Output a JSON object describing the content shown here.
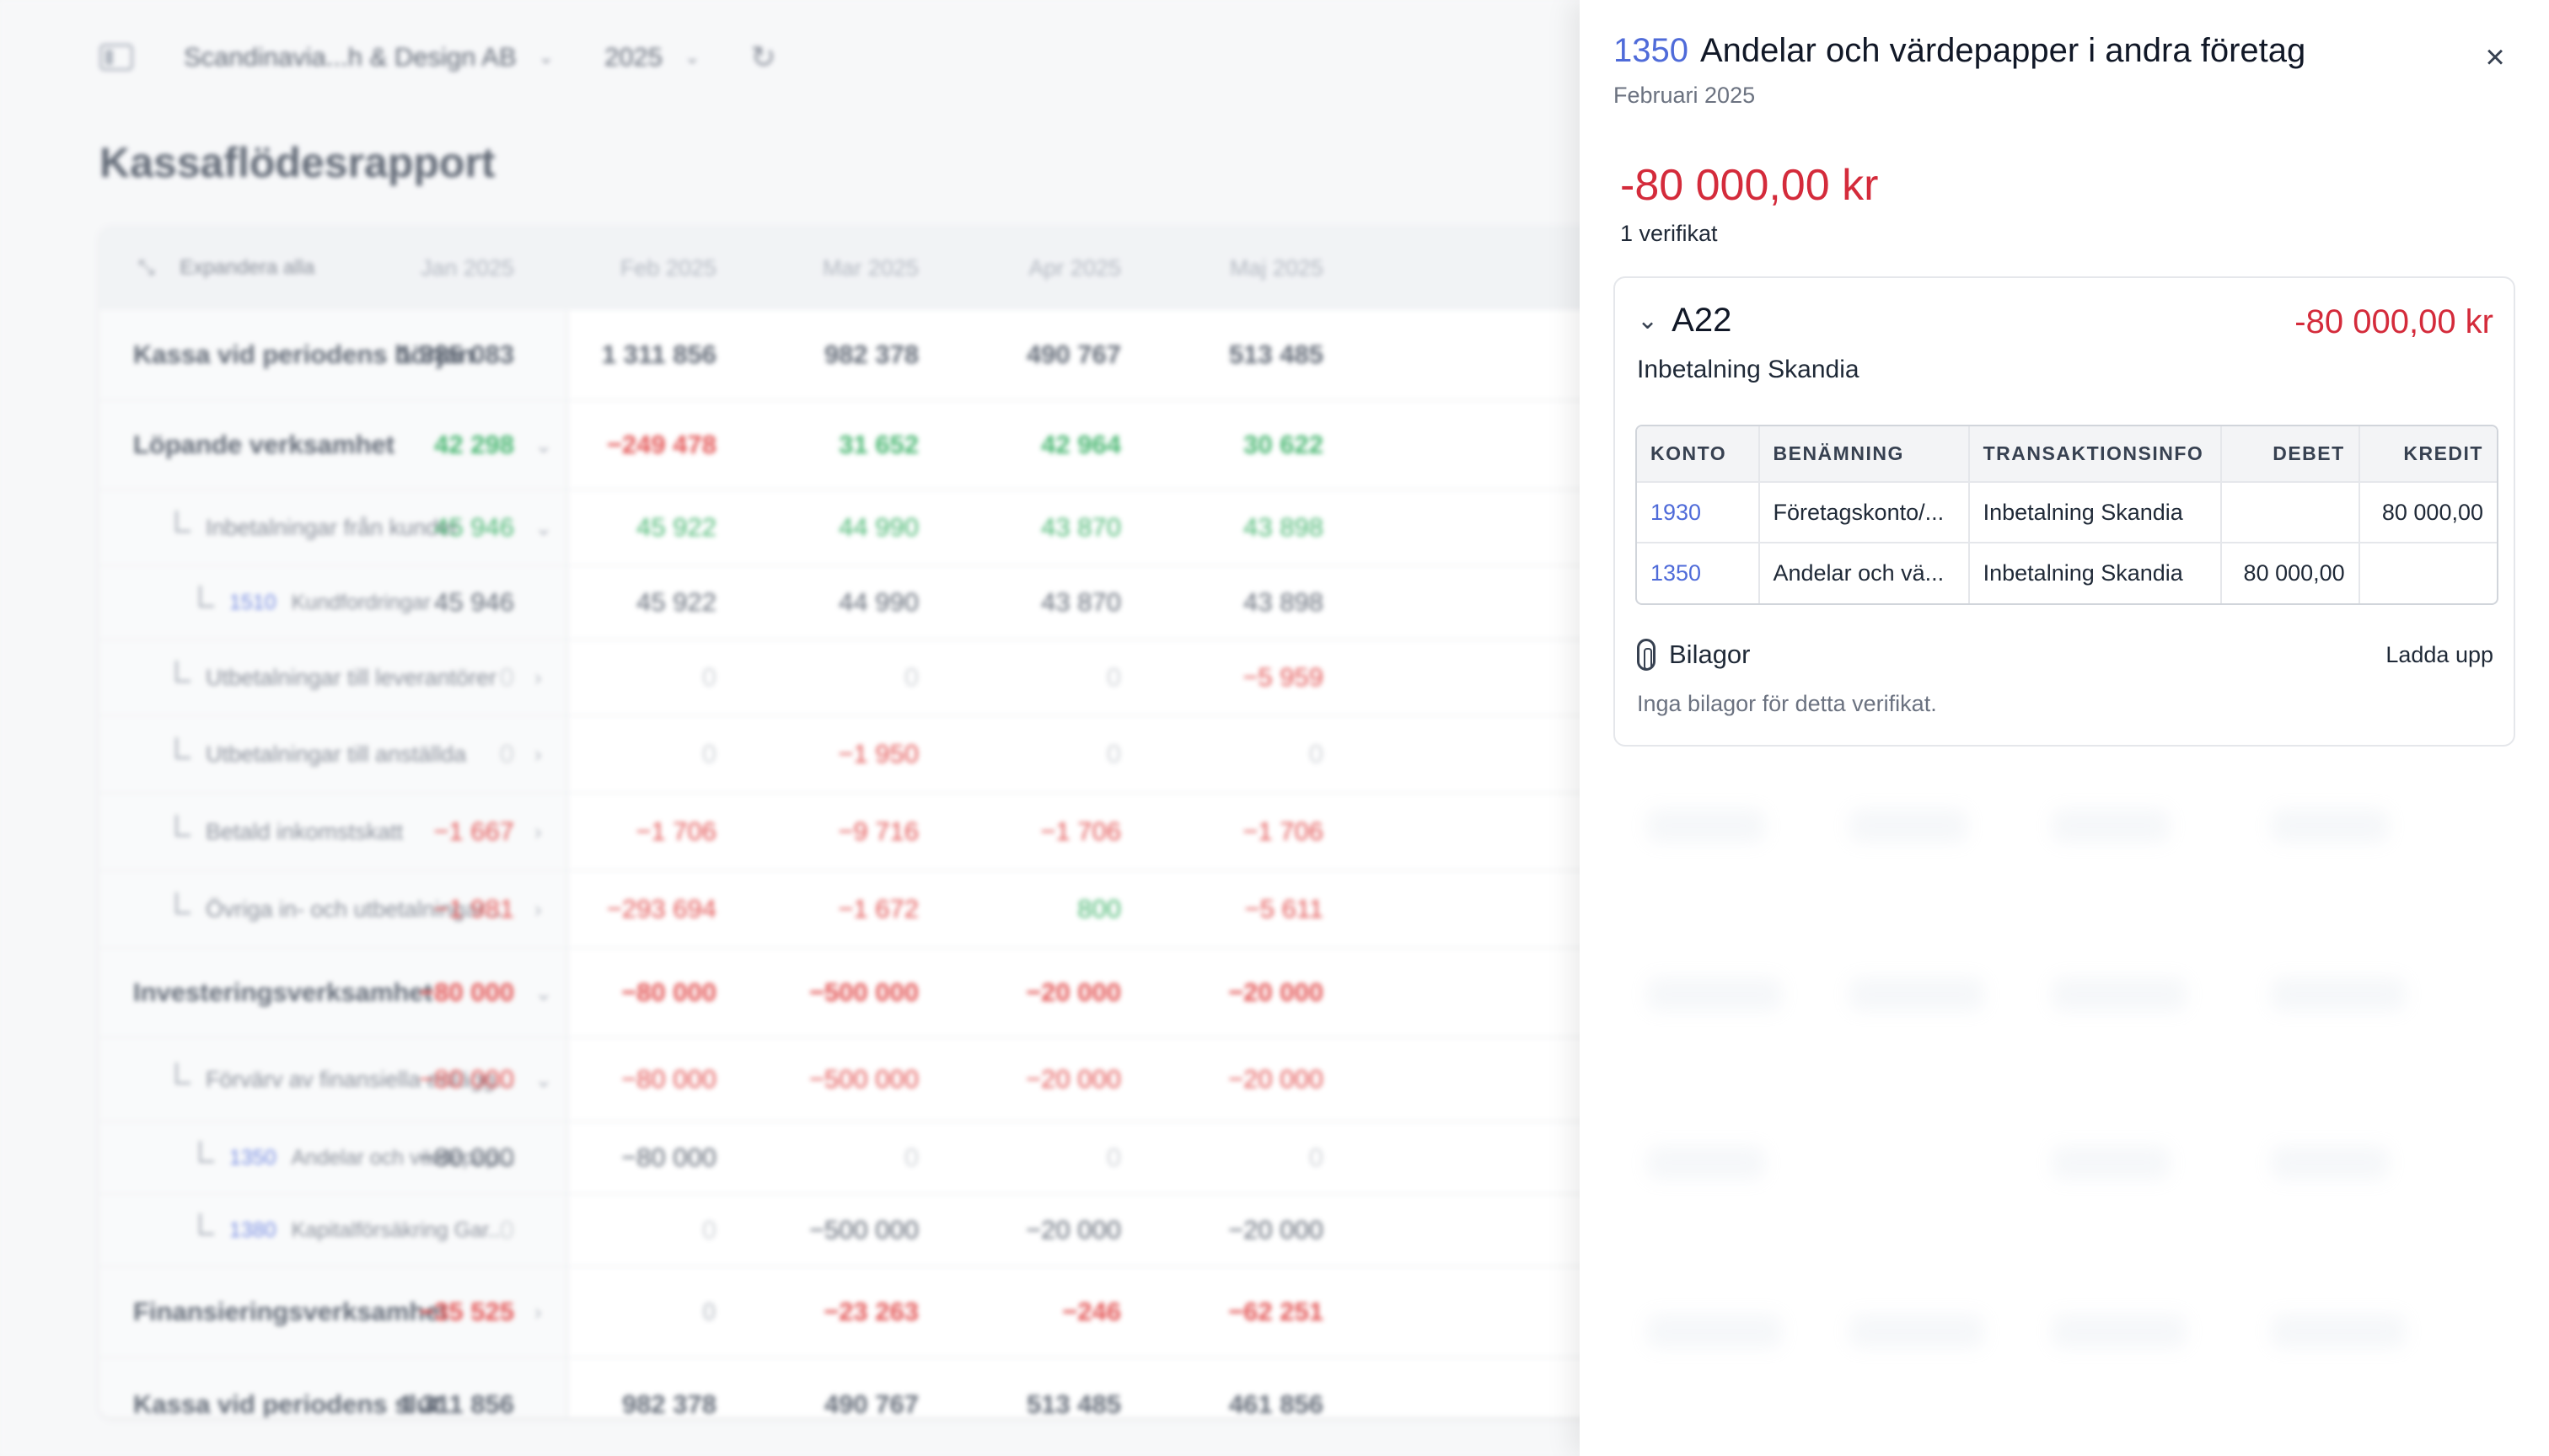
{
  "topbar": {
    "company": "Scandinavia...h & Design AB",
    "year": "2025"
  },
  "report": {
    "title": "Kassaflödesrapport",
    "expand_all": "Expandera alla",
    "months": [
      "Jan 2025",
      "Feb 2025",
      "Mar 2025",
      "Apr 2025",
      "Maj 2025"
    ],
    "rows": [
      {
        "label": "Kassa vid periodens början",
        "level": "main",
        "values": [
          "1 385 083",
          "1 311 856",
          "982 378",
          "490 767",
          "513 485"
        ],
        "tones": [
          "dark",
          "dark",
          "dark",
          "dark",
          "dark"
        ]
      },
      {
        "label": "Löpande verksamhet",
        "level": "main",
        "chevron": "⌄",
        "values": [
          "42 298",
          "−249 478",
          "31 652",
          "42 964",
          "30 622"
        ],
        "tones": [
          "pos",
          "neg",
          "pos",
          "pos",
          "pos"
        ]
      },
      {
        "label": "Inbetalningar från kunder",
        "level": "sub",
        "chevron": "⌄",
        "values": [
          "45 946",
          "45 922",
          "44 990",
          "43 870",
          "43 898"
        ],
        "tones": [
          "pos",
          "pos",
          "pos",
          "pos",
          "pos"
        ]
      },
      {
        "label": "Kundfordringar",
        "account": "1510",
        "level": "subsub",
        "values": [
          "45 946",
          "45 922",
          "44 990",
          "43 870",
          "43 898"
        ],
        "tones": [
          "dark",
          "dark",
          "dark",
          "dark",
          "dark"
        ]
      },
      {
        "label": "Utbetalningar till leverantörer",
        "level": "sub",
        "chevron": "›",
        "values": [
          "0",
          "0",
          "0",
          "0",
          "−5 959"
        ],
        "tones": [
          "muted",
          "muted",
          "muted",
          "muted",
          "neg"
        ]
      },
      {
        "label": "Utbetalningar till anställda",
        "level": "sub",
        "chevron": "›",
        "values": [
          "0",
          "0",
          "−1 950",
          "0",
          "0"
        ],
        "tones": [
          "muted",
          "muted",
          "neg",
          "muted",
          "muted"
        ]
      },
      {
        "label": "Betald inkomstskatt",
        "level": "sub",
        "chevron": "›",
        "values": [
          "−1 667",
          "−1 706",
          "−9 716",
          "−1 706",
          "−1 706"
        ],
        "tones": [
          "neg",
          "neg",
          "neg",
          "neg",
          "neg"
        ]
      },
      {
        "label": "Övriga in- och utbetalningar...",
        "level": "sub",
        "chevron": "›",
        "values": [
          "−1 981",
          "−293 694",
          "−1 672",
          "800",
          "−5 611"
        ],
        "tones": [
          "neg",
          "neg",
          "neg",
          "pos",
          "neg"
        ]
      },
      {
        "label": "Investeringsverksamhet",
        "level": "main",
        "chevron": "⌄",
        "values": [
          "−80 000",
          "−80 000",
          "−500 000",
          "−20 000",
          "−20 000"
        ],
        "tones": [
          "neg",
          "neg",
          "neg",
          "neg",
          "neg"
        ]
      },
      {
        "label": "Förvärv av finansiella anlägg...",
        "level": "sub",
        "chevron": "⌄",
        "values": [
          "−80 000",
          "−80 000",
          "−500 000",
          "−20 000",
          "−20 000"
        ],
        "tones": [
          "neg",
          "neg",
          "neg",
          "neg",
          "neg"
        ]
      },
      {
        "label": "Andelar och värdepap...",
        "account": "1350",
        "level": "subsub",
        "values": [
          "−80 000",
          "−80 000",
          "0",
          "0",
          "0"
        ],
        "tones": [
          "dark",
          "dark",
          "muted",
          "muted",
          "muted"
        ]
      },
      {
        "label": "Kapitalförsäkring Gar...",
        "account": "1380",
        "level": "subsub",
        "values": [
          "0",
          "0",
          "−500 000",
          "−20 000",
          "−20 000"
        ],
        "tones": [
          "muted",
          "muted",
          "dark",
          "dark",
          "dark"
        ]
      },
      {
        "label": "Finansieringsverksamhet",
        "level": "main",
        "chevron": "›",
        "values": [
          "−35 525",
          "0",
          "−23 263",
          "−246",
          "−62 251"
        ],
        "tones": [
          "neg",
          "muted",
          "neg",
          "neg",
          "neg"
        ]
      },
      {
        "label": "Kassa vid periodens slut",
        "level": "main",
        "values": [
          "1 311 856",
          "982 378",
          "490 767",
          "513 485",
          "461 856"
        ],
        "tones": [
          "dark",
          "dark",
          "dark",
          "dark",
          "dark"
        ]
      }
    ]
  },
  "panel": {
    "account": "1350",
    "title": "Andelar och värdepapper i andra företag",
    "period": "Februari 2025",
    "total": "-80 000,00 kr",
    "count": "1 verifikat",
    "close_icon": "close-icon",
    "voucher": {
      "id": "A22",
      "amount": "-80 000,00 kr",
      "description": "Inbetalning Skandia",
      "columns": [
        "KONTO",
        "BENÄMNING",
        "TRANSAKTIONSINFO",
        "DEBET",
        "KREDIT"
      ],
      "lines": [
        {
          "konto": "1930",
          "benamning": "Företagskonto/...",
          "info": "Inbetalning Skandia",
          "debet": "",
          "kredit": "80 000,00"
        },
        {
          "konto": "1350",
          "benamning": "Andelar och vä...",
          "info": "Inbetalning Skandia",
          "debet": "80 000,00",
          "kredit": ""
        }
      ]
    },
    "attachments": {
      "title": "Bilagor",
      "upload": "Ladda upp",
      "empty": "Inga bilagor för detta verifikat."
    }
  },
  "colors": {
    "accent": "#4f6bd9",
    "negative": "#d42b3b",
    "positive": "#16a34a"
  }
}
